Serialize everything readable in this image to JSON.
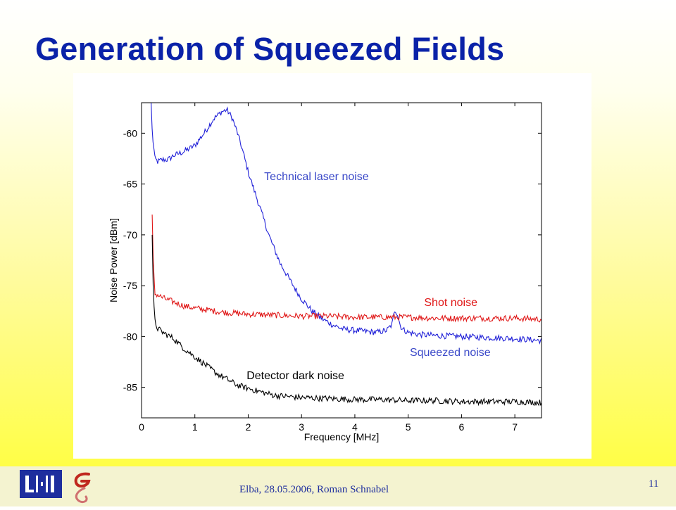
{
  "slide": {
    "title": "Generation of Squeezed Fields",
    "footer": "Elba, 28.05.2006,  Roman Schnabel",
    "page_number": "11"
  },
  "colors": {
    "title": "#0a22a8",
    "footer_text": "#1e2e9e",
    "technical": "#2020d8",
    "shot": "#e01818",
    "dark": "#000000"
  },
  "chart_data": {
    "type": "line",
    "xlabel": "Frequency [MHz]",
    "ylabel": "Noise Power [dBm]",
    "xlim": [
      0,
      7.5
    ],
    "ylim": [
      -88,
      -57
    ],
    "xticks": [
      0,
      1,
      2,
      3,
      4,
      5,
      6,
      7
    ],
    "yticks": [
      -85,
      -80,
      -75,
      -70,
      -65,
      -60
    ],
    "grid": false,
    "annotations": [
      {
        "text": "Technical laser noise",
        "color": "#3a48c8"
      },
      {
        "text": "Shot noise",
        "color": "#e01818"
      },
      {
        "text": "Squeezed noise",
        "color": "#3a48c8"
      },
      {
        "text": "Detector dark noise",
        "color": "#000000"
      }
    ],
    "series": [
      {
        "id": "technical",
        "color": "#2020d8",
        "x": [
          0.18,
          0.2,
          0.25,
          0.3,
          0.4,
          0.5,
          0.6,
          0.8,
          1.0,
          1.2,
          1.35,
          1.5,
          1.6,
          1.7,
          1.8,
          1.9,
          2.0,
          2.2,
          2.4,
          2.6,
          2.8,
          3.0,
          3.2,
          3.4,
          3.6,
          3.8,
          4.0,
          4.2,
          4.4,
          4.6,
          4.7,
          4.75,
          4.8,
          4.85,
          4.9,
          5.0,
          5.2,
          5.5,
          6.0,
          6.5,
          7.0,
          7.5
        ],
        "y": [
          -57,
          -60,
          -62.5,
          -62.8,
          -62.6,
          -62.6,
          -62.2,
          -61.8,
          -61.2,
          -59.8,
          -58.6,
          -57.9,
          -57.7,
          -58.5,
          -60.0,
          -61.8,
          -63.8,
          -67.0,
          -70.2,
          -72.8,
          -74.6,
          -76.3,
          -77.5,
          -78.3,
          -78.9,
          -79.3,
          -79.4,
          -79.5,
          -79.6,
          -79.4,
          -78.8,
          -77.3,
          -77.8,
          -78.9,
          -79.3,
          -79.6,
          -79.8,
          -79.9,
          -80.0,
          -80.1,
          -80.2,
          -80.4
        ]
      },
      {
        "id": "shot",
        "color": "#e01818",
        "x": [
          0.2,
          0.22,
          0.25,
          0.3,
          0.4,
          0.6,
          0.8,
          1.0,
          1.5,
          2.0,
          2.5,
          3.0,
          3.5,
          4.0,
          4.5,
          5.0,
          5.5,
          6.0,
          6.5,
          7.0,
          7.5
        ],
        "y": [
          -68,
          -73,
          -75.8,
          -75.9,
          -76.2,
          -76.6,
          -77.0,
          -77.2,
          -77.6,
          -77.8,
          -77.9,
          -78.0,
          -78.0,
          -78.1,
          -78.1,
          -78.1,
          -78.2,
          -78.2,
          -78.2,
          -78.2,
          -78.3
        ]
      },
      {
        "id": "dark",
        "color": "#000000",
        "x": [
          0.2,
          0.22,
          0.25,
          0.3,
          0.4,
          0.6,
          0.8,
          1.0,
          1.2,
          1.4,
          1.6,
          1.8,
          2.0,
          2.2,
          2.5,
          3.0,
          3.5,
          4.0,
          4.5,
          5.0,
          5.5,
          6.0,
          6.5,
          7.0,
          7.5
        ],
        "y": [
          -70,
          -76,
          -78.5,
          -79.2,
          -79.6,
          -80.2,
          -81.2,
          -82.0,
          -82.8,
          -83.6,
          -84.2,
          -84.8,
          -85.1,
          -85.4,
          -85.8,
          -86.0,
          -86.1,
          -86.2,
          -86.2,
          -86.3,
          -86.3,
          -86.4,
          -86.4,
          -86.4,
          -86.5
        ]
      }
    ]
  }
}
